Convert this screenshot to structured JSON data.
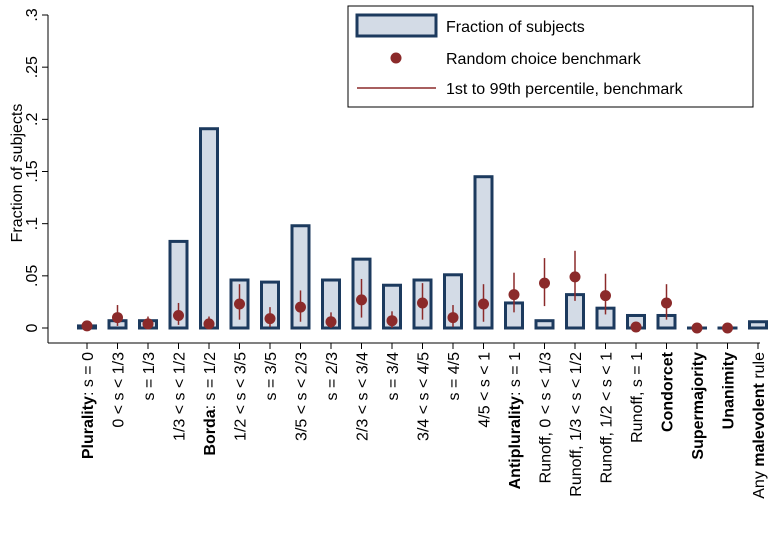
{
  "chart_data": {
    "type": "bar",
    "ylabel": "Fraction of subjects",
    "ylim": [
      0,
      0.3
    ],
    "yticks": [
      0,
      0.05,
      0.1,
      0.15,
      0.2,
      0.25,
      0.3
    ],
    "ytick_labels": [
      "0",
      ".05",
      ".1",
      ".15",
      ".2",
      ".25",
      ".3"
    ],
    "categories": [
      {
        "bold": "Plurality",
        "rest": ": s = 0"
      },
      {
        "bold": "",
        "rest": "0 < s < 1/3"
      },
      {
        "bold": "",
        "rest": "s = 1/3"
      },
      {
        "bold": "",
        "rest": "1/3 < s < 1/2"
      },
      {
        "bold": "Borda",
        "rest": ": s = 1/2"
      },
      {
        "bold": "",
        "rest": "1/2 < s < 3/5"
      },
      {
        "bold": "",
        "rest": "s = 3/5"
      },
      {
        "bold": "",
        "rest": "3/5 < s < 2/3"
      },
      {
        "bold": "",
        "rest": "s = 2/3"
      },
      {
        "bold": "",
        "rest": "2/3 < s < 3/4"
      },
      {
        "bold": "",
        "rest": "s = 3/4"
      },
      {
        "bold": "",
        "rest": "3/4 < s < 4/5"
      },
      {
        "bold": "",
        "rest": "s = 4/5"
      },
      {
        "bold": "",
        "rest": "4/5 < s < 1"
      },
      {
        "bold": "Antiplurality",
        "rest": ": s = 1"
      },
      {
        "bold": "",
        "rest": "Runoff, 0 < s < 1/3"
      },
      {
        "bold": "",
        "rest": "Runoff, 1/3 < s < 1/2"
      },
      {
        "bold": "",
        "rest": "Runoff, 1/2 < s < 1"
      },
      {
        "bold": "",
        "rest": "Runoff, s = 1"
      },
      {
        "bold": "Condorcet",
        "rest": ""
      },
      {
        "bold": "Supermajority",
        "rest": ""
      },
      {
        "bold": "Unanimity",
        "rest": ""
      },
      {
        "bold": "malevolent",
        "rest": " rule",
        "prefix": "Any "
      }
    ],
    "series": [
      {
        "name": "Fraction of subjects",
        "kind": "bar",
        "color": "#d3dbe6",
        "edge_color": "#1c3a5e",
        "values": [
          0.002,
          0.007,
          0.007,
          0.083,
          0.191,
          0.046,
          0.044,
          0.098,
          0.046,
          0.066,
          0.041,
          0.046,
          0.051,
          0.145,
          0.024,
          0.007,
          0.032,
          0.019,
          0.012,
          0.012,
          0.0,
          0.0,
          0.006
        ]
      },
      {
        "name": "Random choice benchmark",
        "kind": "point",
        "color": "#8b2a2a",
        "values": [
          0.002,
          0.01,
          0.004,
          0.012,
          0.004,
          0.023,
          0.009,
          0.02,
          0.006,
          0.027,
          0.007,
          0.024,
          0.01,
          0.023,
          0.032,
          0.043,
          0.049,
          0.031,
          0.001,
          0.024,
          0.0,
          0.0,
          null
        ]
      },
      {
        "name": "1st to 99th percentile, benchmark",
        "kind": "range",
        "color": "#8b2a2a",
        "low": [
          0.0,
          0.002,
          0.0,
          0.003,
          0.0,
          0.008,
          0.001,
          0.006,
          0.0,
          0.01,
          0.0,
          0.008,
          0.001,
          0.006,
          0.015,
          0.021,
          0.026,
          0.013,
          0.0,
          0.008,
          0.0,
          0.0,
          null
        ],
        "high": [
          0.007,
          0.022,
          0.011,
          0.024,
          0.011,
          0.042,
          0.02,
          0.036,
          0.015,
          0.047,
          0.016,
          0.043,
          0.022,
          0.042,
          0.053,
          0.067,
          0.074,
          0.052,
          0.005,
          0.042,
          0.002,
          0.002,
          null
        ]
      }
    ],
    "legend": {
      "position": "top-right"
    },
    "grid": false
  }
}
